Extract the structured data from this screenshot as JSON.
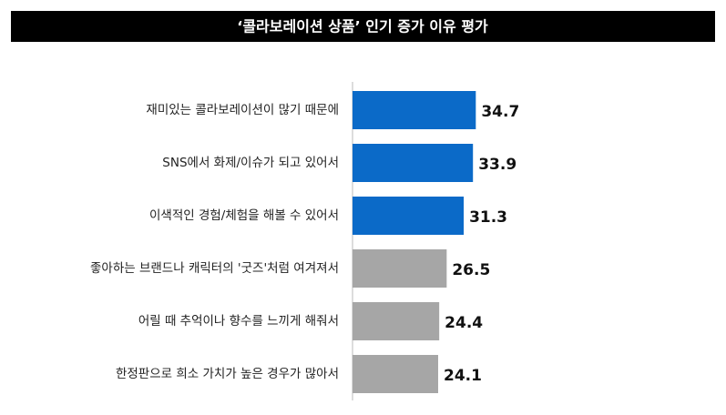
{
  "chart_data": {
    "type": "hbar",
    "title": "‘콜라보레이션 상품’ 인기 증가 이유 평가",
    "categories": [
      "재미있는 콜라보레이션이 많기 때문에",
      "SNS에서 화제/이슈가 되고 있어서",
      "이색적인 경험/체험을 해볼 수 있어서",
      "좋아하는 브랜드나 캐릭터의 '굿즈'처럼 여겨져서",
      "어릴 때 추억이나 향수를 느끼게 해줘서",
      "한정판으로 희소 가치가 높은 경우가 많아서"
    ],
    "values": [
      34.7,
      33.9,
      31.3,
      26.5,
      24.4,
      24.1
    ],
    "colors": [
      "#0b6ac8",
      "#0b6ac8",
      "#0b6ac8",
      "#a6a6a6",
      "#a6a6a6",
      "#a6a6a6"
    ],
    "xlim": [
      0,
      40
    ]
  }
}
